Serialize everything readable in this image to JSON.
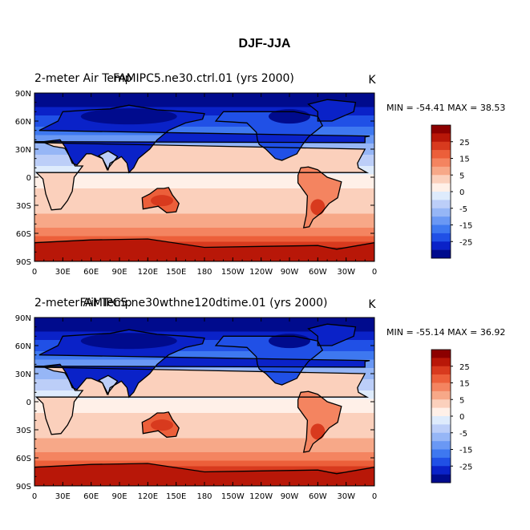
{
  "title": "DJF-JJA",
  "units_label": "K",
  "colorbar": {
    "colors": [
      "#000b8d",
      "#0a22c8",
      "#2050e6",
      "#3e78f0",
      "#6a98f4",
      "#96b6f6",
      "#bccef8",
      "#deebfc",
      "#fff0e8",
      "#fbd0bc",
      "#f7a888",
      "#f48460",
      "#ec5f3a",
      "#d83a1e",
      "#b81708",
      "#8c0000"
    ],
    "tick_labels": [
      "25",
      "15",
      "5",
      "0",
      "-5",
      "-15",
      "-25"
    ]
  },
  "panels": [
    {
      "left_title": "2-meter Air Temp",
      "center_title": "FAMIPC5.ne30.ctrl.01 (yrs 2000)",
      "units": "K",
      "stats_text": "MIN = -54.41 MAX =  38.53"
    },
    {
      "left_title": "2-meter Air Temp",
      "center_title": "FAMIPC5.ne30wthne120dtime.01 (yrs 2000)",
      "units": "K",
      "stats_text": "MIN = -55.14 MAX =  36.92"
    }
  ],
  "chart_data": [
    {
      "type": "heatmap",
      "title": "DJF-JJA",
      "subtitle": "FAMIPC5.ne30.ctrl.01 (yrs 2000)",
      "variable": "2-meter Air Temp",
      "units": "K",
      "min": -54.41,
      "max": 38.53,
      "x_tick_labels": [
        "0",
        "30E",
        "60E",
        "90E",
        "120E",
        "150E",
        "180",
        "150W",
        "120W",
        "90W",
        "60W",
        "30W",
        "0"
      ],
      "y_tick_labels": [
        "90N",
        "60N",
        "30N",
        "0",
        "30S",
        "60S",
        "90S"
      ],
      "xlim": [
        0,
        360
      ],
      "ylim": [
        -90,
        90
      ],
      "contour_levels": [
        -35,
        -30,
        -25,
        -20,
        -15,
        -10,
        -5,
        -2,
        0,
        2,
        5,
        10,
        15,
        20,
        25,
        30
      ],
      "colorbar_labels": [
        "25",
        "15",
        "5",
        "0",
        "-5",
        "-15",
        "-25"
      ]
    },
    {
      "type": "heatmap",
      "title": "DJF-JJA",
      "subtitle": "FAMIPC5.ne30wthne120dtime.01 (yrs 2000)",
      "variable": "2-meter Air Temp",
      "units": "K",
      "min": -55.14,
      "max": 36.92,
      "x_tick_labels": [
        "0",
        "30E",
        "60E",
        "90E",
        "120E",
        "150E",
        "180",
        "150W",
        "120W",
        "90W",
        "60W",
        "30W",
        "0"
      ],
      "y_tick_labels": [
        "90N",
        "60N",
        "30N",
        "0",
        "30S",
        "60S",
        "90S"
      ],
      "xlim": [
        0,
        360
      ],
      "ylim": [
        -90,
        90
      ],
      "contour_levels": [
        -35,
        -30,
        -25,
        -20,
        -15,
        -10,
        -5,
        -2,
        0,
        2,
        5,
        10,
        15,
        20,
        25,
        30
      ],
      "colorbar_labels": [
        "25",
        "15",
        "5",
        "0",
        "-5",
        "-15",
        "-25"
      ]
    }
  ]
}
